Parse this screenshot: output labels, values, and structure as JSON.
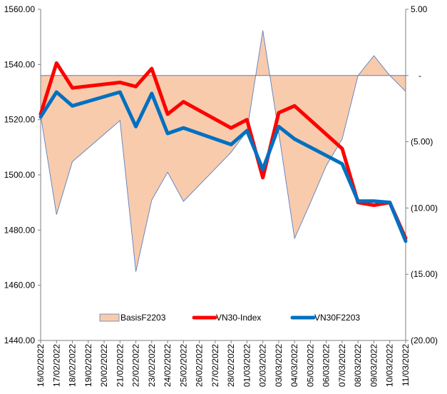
{
  "chart_data": {
    "type": "line",
    "title": "",
    "categories": [
      "16/02/2022",
      "17/02/2022",
      "18/02/2022",
      "19/02/2022",
      "20/02/2022",
      "21/02/2022",
      "22/02/2022",
      "23/02/2022",
      "24/02/2022",
      "25/02/2022",
      "26/02/2022",
      "27/02/2022",
      "28/02/2022",
      "01/03/2022",
      "02/03/2022",
      "03/03/2022",
      "04/03/2022",
      "05/03/2022",
      "06/03/2022",
      "07/03/2022",
      "08/03/2022",
      "09/03/2022",
      "10/03/2022",
      "11/03/2022"
    ],
    "y_left": {
      "range": [
        1440,
        1560
      ],
      "ticks": [
        1440,
        1460,
        1480,
        1500,
        1520,
        1540,
        1560
      ],
      "tick_labels": [
        "1440.00",
        "1460.00",
        "1480.00",
        "1500.00",
        "1520.00",
        "1540.00",
        "1560.00"
      ]
    },
    "y_right": {
      "range": [
        -20,
        5
      ],
      "ticks": [
        5,
        0,
        -5,
        -10,
        -15,
        -20
      ],
      "tick_labels": [
        "5.00",
        "-",
        "(5.00)",
        "(10.00)",
        "(15.00)",
        "(20.00)"
      ]
    },
    "series": [
      {
        "name": "BasisF2203",
        "kind": "area",
        "axis": "right",
        "color": "#f8cbad",
        "edge_color": "#5b7fbf",
        "points": [
          [
            0,
            -3.0
          ],
          [
            1,
            -10.5
          ],
          [
            2,
            -6.5
          ],
          [
            5,
            -3.4
          ],
          [
            6,
            -14.8
          ],
          [
            7,
            -9.4
          ],
          [
            8,
            -7.3
          ],
          [
            9,
            -9.5
          ],
          [
            12,
            -5.8
          ],
          [
            13,
            -4.2
          ],
          [
            14,
            3.4
          ],
          [
            15,
            -4.3
          ],
          [
            16,
            -12.3
          ],
          [
            17,
            -9.6
          ],
          [
            18,
            -6.8
          ],
          [
            19,
            -4.8
          ],
          [
            20,
            0
          ],
          [
            21,
            1.5
          ],
          [
            22,
            0
          ],
          [
            23,
            -1.2
          ]
        ]
      },
      {
        "name": "VN30-Index",
        "kind": "line",
        "axis": "left",
        "color": "#ff0000",
        "points": [
          [
            0,
            1522
          ],
          [
            1,
            1540.5
          ],
          [
            2,
            1531.5
          ],
          [
            5,
            1533.5
          ],
          [
            6,
            1532
          ],
          [
            7,
            1538.5
          ],
          [
            8,
            1522
          ],
          [
            9,
            1526.5
          ],
          [
            12,
            1517
          ],
          [
            13,
            1520
          ],
          [
            14,
            1499
          ],
          [
            15,
            1522.5
          ],
          [
            16,
            1525
          ],
          [
            19,
            1509.5
          ],
          [
            20,
            1490
          ],
          [
            21,
            1489
          ],
          [
            22,
            1490
          ],
          [
            23,
            1477
          ]
        ]
      },
      {
        "name": "VN30F2203",
        "kind": "line",
        "axis": "left",
        "color": "#0070c0",
        "points": [
          [
            0,
            1521
          ],
          [
            1,
            1530
          ],
          [
            2,
            1525
          ],
          [
            5,
            1530
          ],
          [
            6,
            1517.5
          ],
          [
            7,
            1529.5
          ],
          [
            8,
            1515
          ],
          [
            9,
            1517
          ],
          [
            12,
            1511
          ],
          [
            13,
            1516
          ],
          [
            14,
            1502
          ],
          [
            15,
            1517.5
          ],
          [
            16,
            1513
          ],
          [
            19,
            1504
          ],
          [
            20,
            1490.5
          ],
          [
            21,
            1490.5
          ],
          [
            22,
            1490
          ],
          [
            23,
            1476
          ]
        ]
      }
    ],
    "legend": {
      "position": "bottom-inside",
      "entries": [
        "BasisF2203",
        "VN30-Index",
        "VN30F2203"
      ]
    },
    "grid": false
  }
}
